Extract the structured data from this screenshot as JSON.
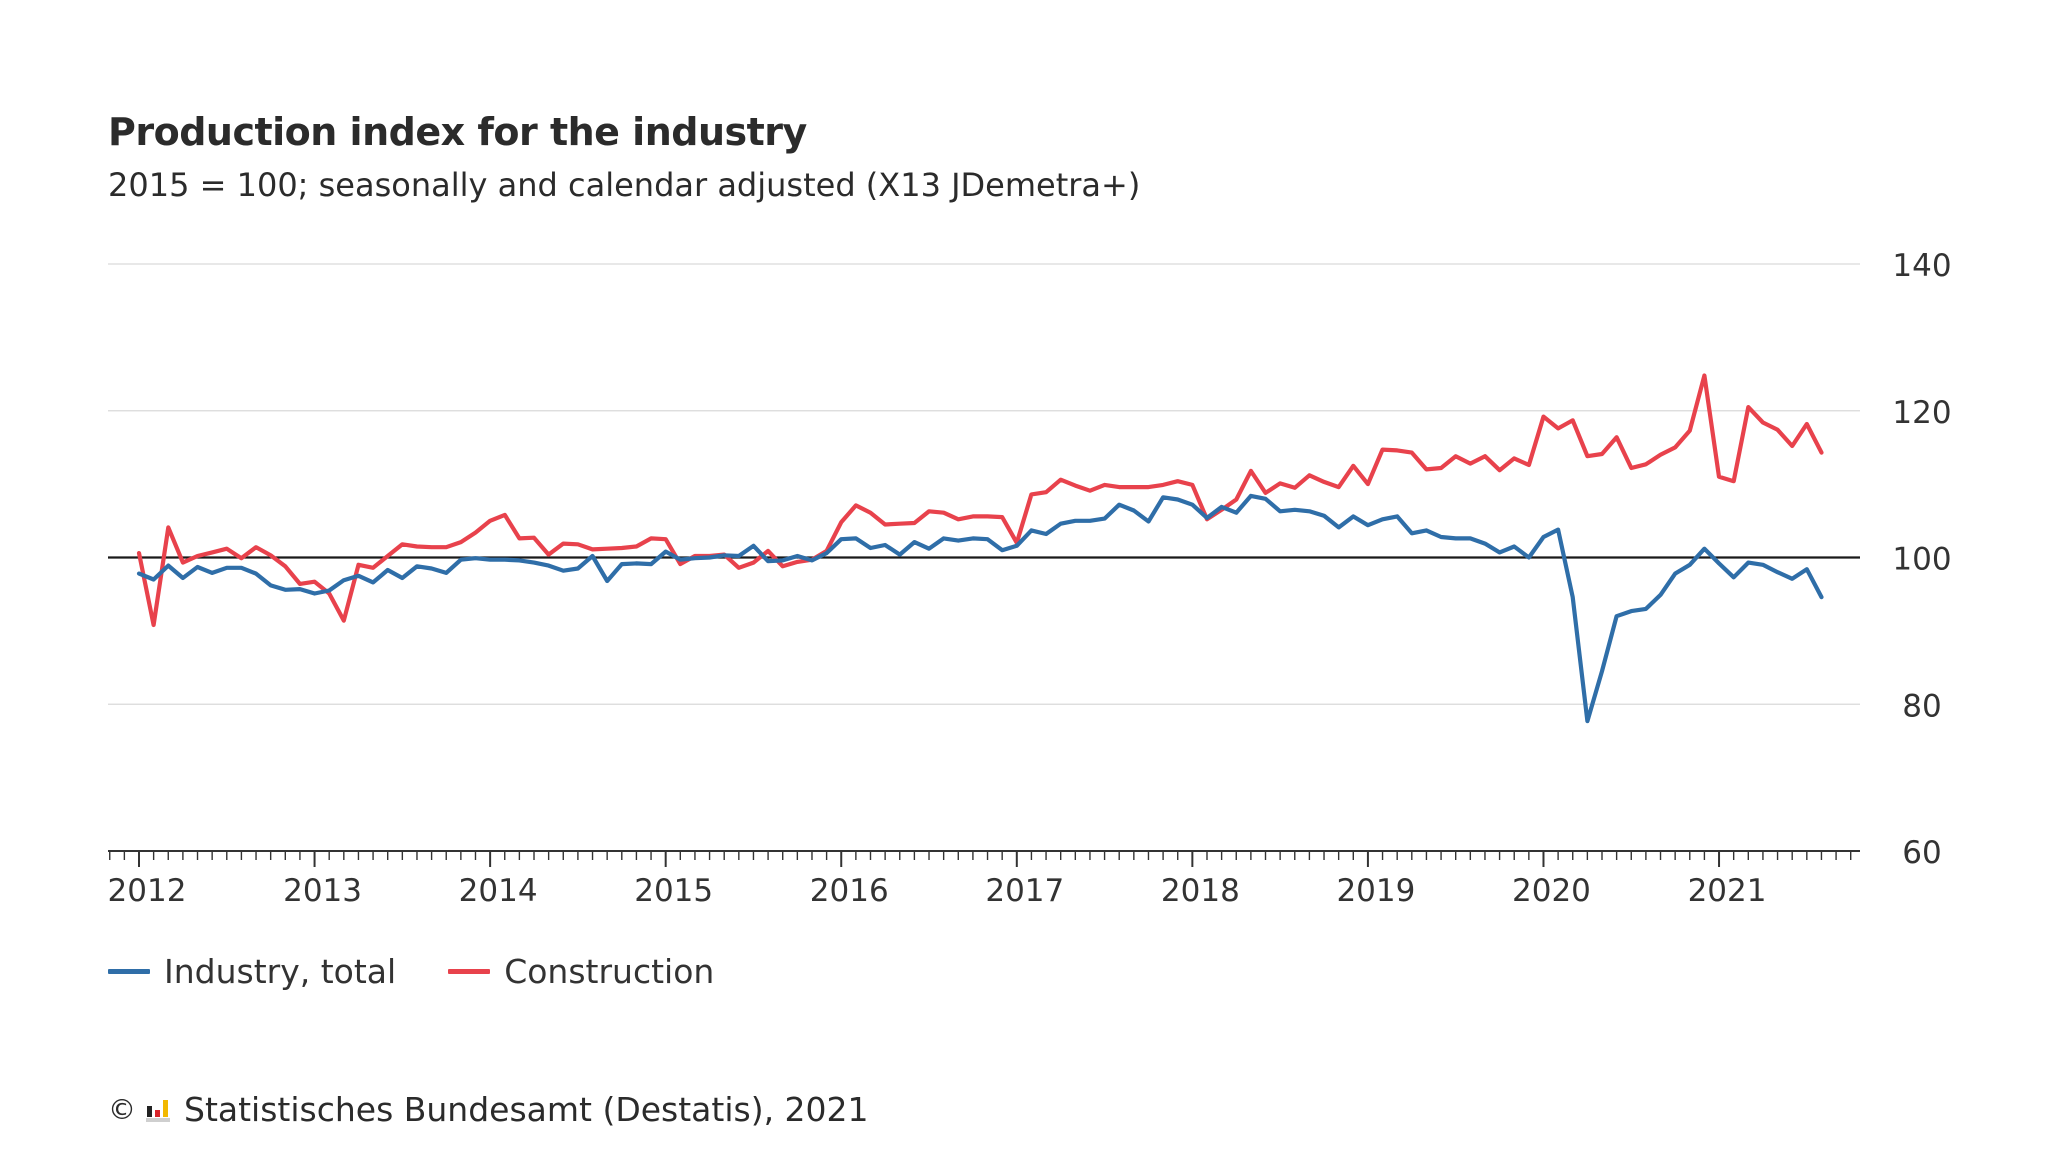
{
  "chart_data": {
    "type": "line",
    "title": "Production index for the industry",
    "subtitle": "2015 = 100; seasonally and calendar adjusted (X13 JDemetra+)",
    "xlabel": "",
    "ylabel": "",
    "ylim": [
      60,
      140
    ],
    "yticks": [
      60,
      80,
      100,
      120,
      140
    ],
    "reference_line": 100,
    "x_start": "2012-01",
    "x_ticks": [
      "2012",
      "2013",
      "2014",
      "2015",
      "2016",
      "2017",
      "2018",
      "2019",
      "2020",
      "2021"
    ],
    "legend_position": "bottom-left",
    "series": [
      {
        "name": "Industry, total",
        "color": "#2f6ea8",
        "values": [
          97.8,
          97.0,
          98.9,
          97.2,
          98.7,
          97.9,
          98.6,
          98.6,
          97.8,
          96.2,
          95.6,
          95.7,
          95.1,
          95.5,
          96.9,
          97.5,
          96.6,
          98.3,
          97.2,
          98.8,
          98.5,
          97.9,
          99.7,
          99.9,
          99.7,
          99.7,
          99.6,
          99.3,
          98.9,
          98.2,
          98.5,
          100.2,
          96.8,
          99.1,
          99.2,
          99.1,
          100.8,
          99.7,
          99.9,
          100.0,
          100.3,
          100.2,
          101.6,
          99.5,
          99.6,
          100.2,
          99.6,
          100.6,
          102.5,
          102.6,
          101.3,
          101.7,
          100.4,
          102.1,
          101.2,
          102.6,
          102.3,
          102.6,
          102.5,
          101.0,
          101.6,
          103.7,
          103.2,
          104.6,
          105.0,
          105.0,
          105.3,
          107.2,
          106.4,
          104.9,
          108.2,
          107.9,
          107.2,
          105.4,
          106.9,
          106.1,
          108.4,
          108.0,
          106.3,
          106.5,
          106.3,
          105.7,
          104.1,
          105.6,
          104.4,
          105.2,
          105.6,
          103.3,
          103.7,
          102.8,
          102.6,
          102.6,
          101.9,
          100.7,
          101.5,
          100.0,
          102.8,
          103.8,
          94.6,
          77.7,
          84.5,
          92.0,
          92.7,
          93.0,
          94.9,
          97.8,
          99.0,
          101.2,
          99.2,
          97.3,
          99.3,
          99.0,
          98.0,
          97.1,
          98.4,
          94.6
        ]
      },
      {
        "name": "Construction",
        "color": "#e8424c",
        "values": [
          100.6,
          90.8,
          104.1,
          99.3,
          100.2,
          100.7,
          101.2,
          99.9,
          101.4,
          100.3,
          98.8,
          96.4,
          96.7,
          95.1,
          91.4,
          99.0,
          98.6,
          100.2,
          101.8,
          101.5,
          101.4,
          101.4,
          102.1,
          103.4,
          105.0,
          105.8,
          102.6,
          102.7,
          100.4,
          101.9,
          101.8,
          101.1,
          101.2,
          101.3,
          101.5,
          102.6,
          102.5,
          99.1,
          100.2,
          100.2,
          100.4,
          98.6,
          99.3,
          100.9,
          98.8,
          99.4,
          99.7,
          100.9,
          104.8,
          107.1,
          106.1,
          104.5,
          104.6,
          104.7,
          106.3,
          106.1,
          105.2,
          105.6,
          105.6,
          105.5,
          102.0,
          108.6,
          108.9,
          110.6,
          109.8,
          109.1,
          109.9,
          109.6,
          109.6,
          109.6,
          109.9,
          110.4,
          109.9,
          105.2,
          106.5,
          107.9,
          111.8,
          108.8,
          110.1,
          109.5,
          111.2,
          110.3,
          109.6,
          112.5,
          110.0,
          114.7,
          114.6,
          114.3,
          112.0,
          112.2,
          113.8,
          112.8,
          113.8,
          111.9,
          113.5,
          112.6,
          119.2,
          117.6,
          118.7,
          113.8,
          114.1,
          116.4,
          112.2,
          112.7,
          114.0,
          115.0,
          117.3,
          124.8,
          111.0,
          110.4,
          120.5,
          118.4,
          117.4,
          115.2,
          118.2,
          114.3
        ]
      }
    ]
  },
  "footer": {
    "copyright_symbol": "©",
    "source": "Statistisches Bundesamt (Destatis), 2021"
  }
}
